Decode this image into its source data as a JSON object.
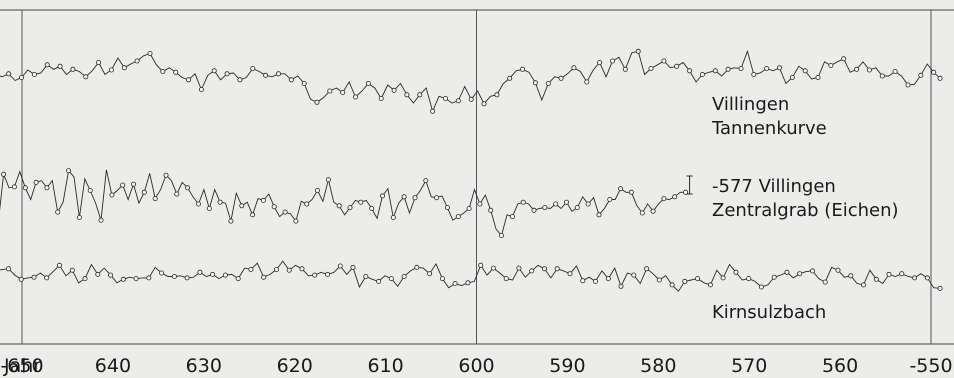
{
  "chart_data": {
    "type": "line",
    "x_axis": {
      "label": "Jahr",
      "min": -655,
      "max": -549,
      "ticks": [
        -650,
        -640,
        -630,
        -620,
        -610,
        -600,
        -590,
        -580,
        -570,
        -560,
        -550
      ],
      "tick_labels": [
        "-650",
        "640",
        "630",
        "620",
        "610",
        "600",
        "590",
        "580",
        "570",
        "560",
        "-550"
      ]
    },
    "vertical_lines": [
      -650,
      -600,
      -550
    ],
    "grid": false,
    "series": [
      {
        "label_lines": [
          "Villingen",
          "Tannenkurve"
        ],
        "x_start": -655,
        "x_end": -549,
        "values": [
          64,
          59,
          62,
          54,
          51,
          55,
          46,
          50,
          60,
          54,
          56,
          67,
          61,
          65,
          54,
          61,
          58,
          51,
          59,
          70,
          54,
          60,
          76,
          63,
          68,
          72,
          79,
          82,
          67,
          58,
          63,
          57,
          50,
          47,
          55,
          34,
          53,
          59,
          47,
          55,
          56,
          47,
          50,
          62,
          58,
          53,
          51,
          55,
          55,
          47,
          52,
          42,
          21,
          17,
          23,
          32,
          36,
          30,
          44,
          24,
          32,
          42,
          36,
          22,
          40,
          33,
          42,
          27,
          16,
          27,
          36,
          5,
          25,
          22,
          16,
          19,
          38,
          21,
          32,
          15,
          25,
          27,
          42,
          49,
          59,
          61,
          57,
          43,
          20,
          42,
          51,
          49,
          55,
          63,
          58,
          44,
          60,
          70,
          51,
          72,
          77,
          61,
          83,
          85,
          54,
          62,
          67,
          72,
          63,
          65,
          70,
          59,
          44,
          54,
          57,
          59,
          52,
          61,
          63,
          62,
          85,
          54,
          56,
          62,
          59,
          63,
          42,
          50,
          65,
          59,
          48,
          50,
          71,
          66,
          71,
          75,
          57,
          61,
          71,
          60,
          63,
          52,
          52,
          58,
          52,
          40,
          41,
          53,
          68,
          57,
          49
        ]
      },
      {
        "label_lines": [
          "-577 Villingen",
          "Zentralgrab (Eichen)"
        ],
        "x_start": -655,
        "x_end": -577,
        "values": [
          40,
          23,
          22,
          50,
          19,
          73,
          58,
          59,
          76,
          58,
          45,
          64,
          66,
          58,
          66,
          31,
          42,
          77,
          70,
          25,
          68,
          55,
          41,
          22,
          78,
          50,
          55,
          61,
          45,
          62,
          41,
          53,
          74,
          46,
          56,
          72,
          66,
          51,
          64,
          58,
          48,
          40,
          56,
          35,
          56,
          42,
          41,
          21,
          52,
          38,
          42,
          28,
          46,
          44,
          51,
          37,
          26,
          31,
          29,
          21,
          43,
          40,
          45,
          55,
          43,
          67,
          42,
          38,
          28,
          36,
          44,
          42,
          44,
          35,
          24,
          49,
          57,
          25,
          41,
          48,
          30,
          47,
          55,
          66,
          48,
          47,
          49,
          36,
          22,
          26,
          30,
          35,
          56,
          40,
          50,
          33,
          12,
          5,
          28,
          26,
          40,
          42,
          40,
          33,
          35,
          36,
          35,
          40,
          35,
          42,
          32,
          36,
          48,
          40,
          47,
          28,
          35,
          45,
          45,
          57,
          53,
          53,
          38,
          30,
          40,
          32,
          40,
          46,
          45,
          48,
          53,
          53
        ]
      },
      {
        "label_lines": [
          "Kirnsulzbach"
        ],
        "x_start": -655,
        "x_end": -549,
        "values": [
          56,
          42,
          50,
          53,
          55,
          56,
          47,
          41,
          43,
          44,
          50,
          43,
          52,
          61,
          46,
          54,
          36,
          42,
          62,
          48,
          57,
          47,
          36,
          41,
          44,
          42,
          43,
          43,
          58,
          50,
          45,
          45,
          46,
          43,
          44,
          51,
          45,
          48,
          42,
          47,
          48,
          42,
          57,
          55,
          64,
          44,
          48,
          55,
          67,
          54,
          61,
          56,
          46,
          47,
          51,
          48,
          51,
          60,
          48,
          58,
          30,
          45,
          41,
          38,
          46,
          42,
          31,
          45,
          53,
          58,
          57,
          49,
          63,
          42,
          29,
          35,
          32,
          36,
          38,
          61,
          47,
          57,
          50,
          42,
          40,
          57,
          44,
          53,
          61,
          56,
          43,
          56,
          53,
          49,
          60,
          39,
          44,
          38,
          53,
          42,
          57,
          31,
          50,
          47,
          35,
          56,
          49,
          40,
          46,
          33,
          24,
          38,
          40,
          42,
          36,
          33,
          54,
          43,
          62,
          51,
          40,
          42,
          38,
          30,
          33,
          44,
          47,
          51,
          43,
          49,
          52,
          53,
          42,
          37,
          58,
          54,
          44,
          46,
          35,
          33,
          54,
          41,
          35,
          48,
          45,
          49,
          45,
          43,
          49,
          43,
          29,
          28
        ]
      }
    ]
  }
}
